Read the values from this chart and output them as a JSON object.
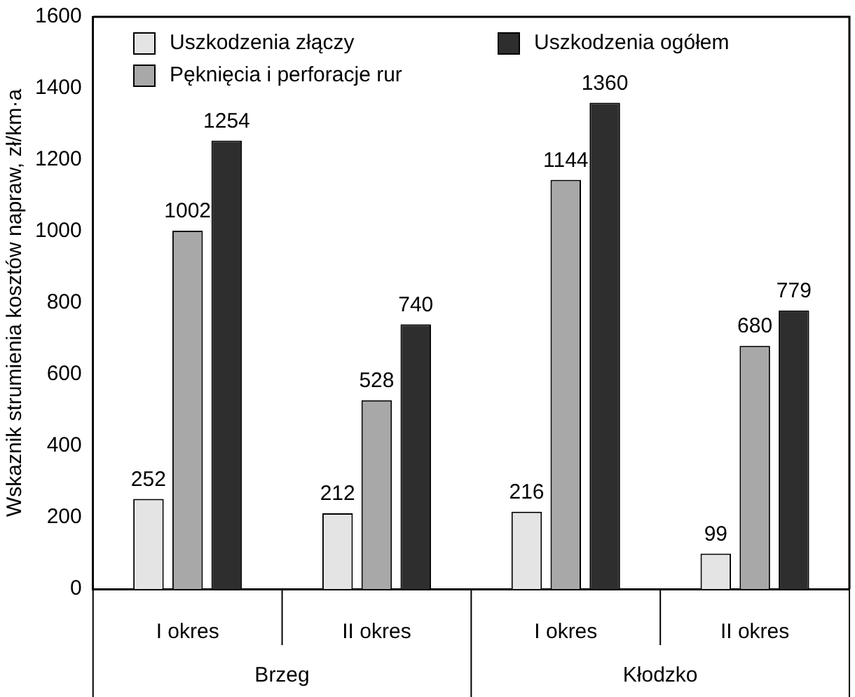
{
  "chart_data": {
    "type": "bar",
    "ylabel": "Wskaznik strumienia kosztów napraw, zł/km·a",
    "categories": [
      "I okres",
      "II okres",
      "I okres",
      "II okres"
    ],
    "series": [
      {
        "name": "Uszkodzenia złączy",
        "color": "#e4e4e4",
        "values": [
          252,
          212,
          216,
          99
        ]
      },
      {
        "name": "Pęknięcia i perforacje rur",
        "color": "#a8a8a8",
        "values": [
          1002,
          528,
          1144,
          680
        ]
      },
      {
        "name": "Uszkodzenia ogółem",
        "color": "#2e2e2e",
        "values": [
          1254,
          740,
          1360,
          779
        ]
      }
    ],
    "annotations": [
      "Brzeg",
      "Kłodzko"
    ],
    "ylim": [
      0,
      1600
    ],
    "yticks": [
      0,
      200,
      400,
      600,
      800,
      1000,
      1200,
      1400,
      1600
    ],
    "grid": false,
    "legend": "top",
    "data_labels": true
  }
}
